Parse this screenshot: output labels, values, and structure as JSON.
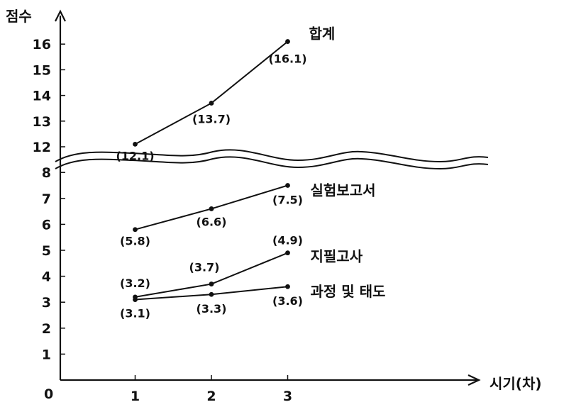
{
  "chart_data": {
    "type": "line",
    "title": "",
    "ylabel": "점수",
    "xlabel": "시기(차)",
    "origin_label": "0",
    "x": [
      1,
      2,
      3
    ],
    "x_tick_labels": [
      "1",
      "2",
      "3"
    ],
    "y_tick_labels": [
      "1",
      "2",
      "3",
      "4",
      "5",
      "6",
      "7",
      "8",
      "12",
      "13",
      "14",
      "15",
      "16"
    ],
    "y_axis_break": {
      "between": [
        8,
        12
      ],
      "style": "wavy double line"
    },
    "grid": false,
    "legend": "none (series named at line ends)",
    "series": [
      {
        "name": "합계",
        "values": [
          12.1,
          13.7,
          16.1
        ],
        "labels": [
          "(12.1)",
          "(13.7)",
          "(16.1)"
        ]
      },
      {
        "name": "실험보고서",
        "values": [
          5.8,
          6.6,
          7.5
        ],
        "labels": [
          "(5.8)",
          "(6.6)",
          "(7.5)"
        ]
      },
      {
        "name": "지필고사",
        "values": [
          3.2,
          3.7,
          4.9
        ],
        "labels": [
          "(3.2)",
          "(3.7)",
          "(4.9)"
        ]
      },
      {
        "name": "과정 및 태도",
        "values": [
          3.1,
          3.3,
          3.6
        ],
        "labels": [
          "(3.1)",
          "(3.3)",
          "(3.6)"
        ]
      }
    ]
  }
}
